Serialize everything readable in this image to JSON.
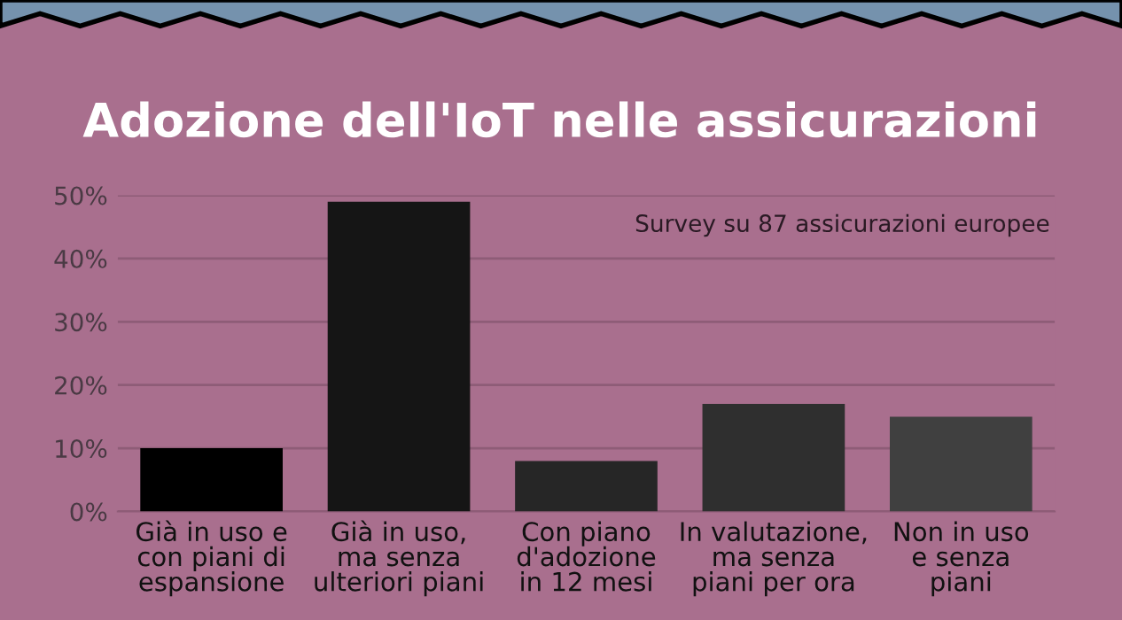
{
  "chart_data": {
    "type": "bar",
    "title": "Adozione dell'IoT nelle assicurazioni",
    "categories": [
      "Già in uso e\ncon piani di\nespansione",
      "Già in uso,\nma senza\nulteriori piani",
      "Con piano\nd'adozione\nin 12 mesi",
      "In valutazione,\nma senza\npiani per ora",
      "Non in uso\ne senza\npiani"
    ],
    "values": [
      10,
      49,
      8,
      17,
      15
    ],
    "colors": [
      "#000000",
      "#151515",
      "#262626",
      "#2f2f2f",
      "#404040"
    ],
    "ylim": [
      0,
      50
    ],
    "yticks": [
      {
        "value": 0,
        "label": "0%"
      },
      {
        "value": 10,
        "label": "10%"
      },
      {
        "value": 20,
        "label": "20%"
      },
      {
        "value": 30,
        "label": "30%"
      },
      {
        "value": 40,
        "label": "40%"
      },
      {
        "value": 50,
        "label": "50%"
      }
    ],
    "grid": "y",
    "annotations": [
      "Survey su 87 assicurazioni europee"
    ]
  }
}
